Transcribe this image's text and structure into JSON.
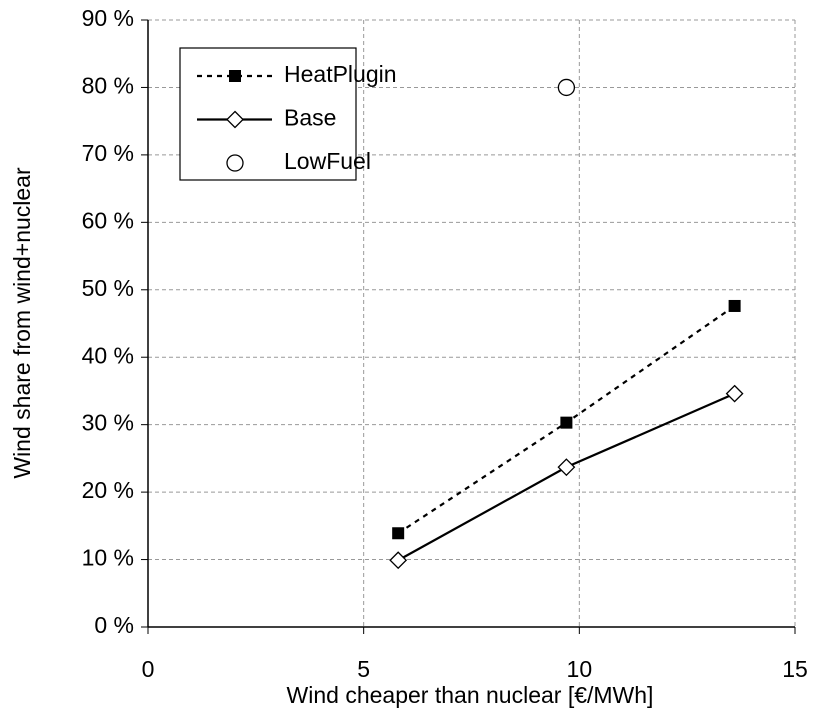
{
  "chart_data": {
    "type": "line",
    "xlabel": "Wind cheaper than nuclear [€/MWh]",
    "ylabel": "Wind share from wind+nuclear",
    "xlim": [
      0,
      15
    ],
    "xticks": [
      0,
      5,
      10,
      15
    ],
    "ylim": [
      0,
      90
    ],
    "yticks": [
      {
        "value": 0,
        "label": "0 %"
      },
      {
        "value": 10,
        "label": "10 %"
      },
      {
        "value": 20,
        "label": "20 %"
      },
      {
        "value": 30,
        "label": "30 %"
      },
      {
        "value": 40,
        "label": "40 %"
      },
      {
        "value": 50,
        "label": "50 %"
      },
      {
        "value": 60,
        "label": "60 %"
      },
      {
        "value": 70,
        "label": "70 %"
      },
      {
        "value": 80,
        "label": "80 %"
      },
      {
        "value": 90,
        "label": "90 %"
      }
    ],
    "grid": true,
    "legend": "upper left",
    "series": [
      {
        "name": "HeatPlugin",
        "color": "#000000",
        "linestyle": "dotted",
        "marker": "square",
        "x": [
          5.8,
          9.7,
          13.6
        ],
        "values": [
          13.9,
          30.3,
          47.6
        ]
      },
      {
        "name": "Base",
        "color": "#000000",
        "linestyle": "solid",
        "marker": "diamond",
        "x": [
          5.8,
          9.7,
          13.6
        ],
        "values": [
          9.9,
          23.7,
          34.6
        ]
      },
      {
        "name": "LowFuel",
        "color": "#000000",
        "linestyle": "none",
        "marker": "circle",
        "x": [
          9.7
        ],
        "values": [
          80
        ]
      }
    ]
  }
}
